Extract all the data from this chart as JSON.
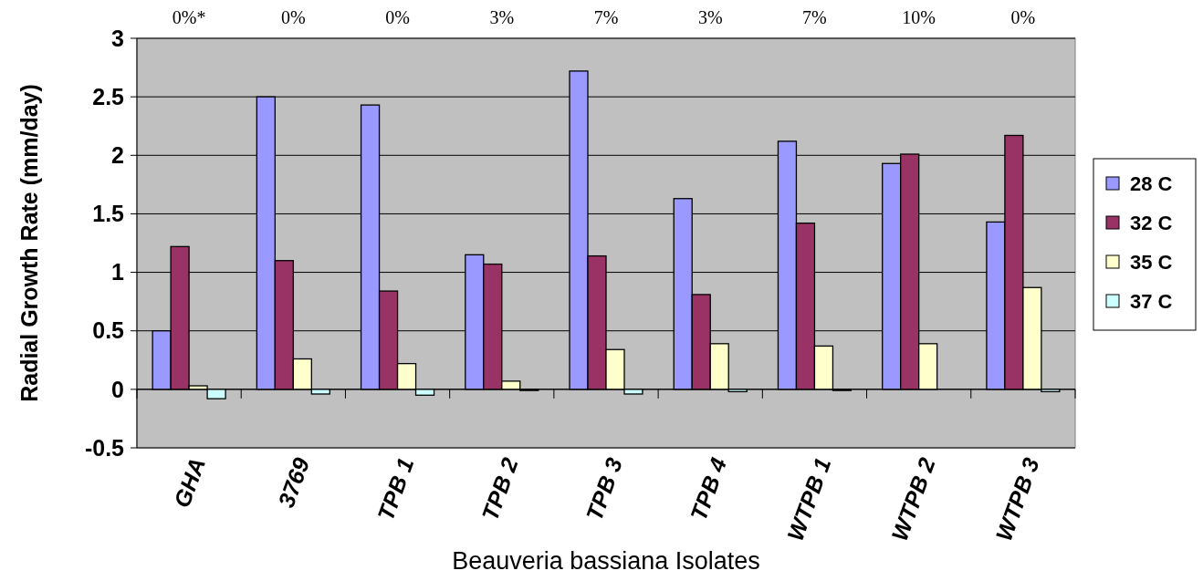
{
  "chart_data": {
    "type": "bar",
    "xlabel": "Beauveria bassiana Isolates",
    "ylabel": "Radial Growth Rate (mm/day)",
    "categories": [
      "GHA",
      "3769",
      "TPB 1",
      "TPB 2",
      "TPB 3",
      "TPB 4",
      "WTPB 1",
      "WTPB 2",
      "WTPB 3"
    ],
    "series": [
      {
        "name": "28 C",
        "color": "#9999ff",
        "values": [
          0.5,
          2.5,
          2.43,
          1.15,
          2.72,
          1.63,
          2.12,
          1.93,
          1.43
        ]
      },
      {
        "name": "32 C",
        "color": "#993366",
        "values": [
          1.22,
          1.1,
          0.84,
          1.07,
          1.14,
          0.81,
          1.42,
          2.01,
          2.17
        ]
      },
      {
        "name": "35 C",
        "color": "#ffffcc",
        "values": [
          0.03,
          0.26,
          0.22,
          0.07,
          0.34,
          0.39,
          0.37,
          0.39,
          0.87
        ]
      },
      {
        "name": "37 C",
        "color": "#ccffff",
        "values": [
          -0.08,
          -0.04,
          -0.05,
          -0.01,
          -0.04,
          -0.02,
          -0.01,
          0,
          -0.02
        ]
      }
    ],
    "ylim": [
      -0.5,
      3
    ],
    "yticks": [
      -0.5,
      0,
      0.5,
      1,
      1.5,
      2,
      2.5,
      3
    ],
    "grid": "y",
    "legend": "right",
    "annotations": [
      "0%*",
      "0%",
      "0%",
      "3%",
      "7%",
      "3%",
      "7%",
      "10%",
      "0%"
    ]
  }
}
